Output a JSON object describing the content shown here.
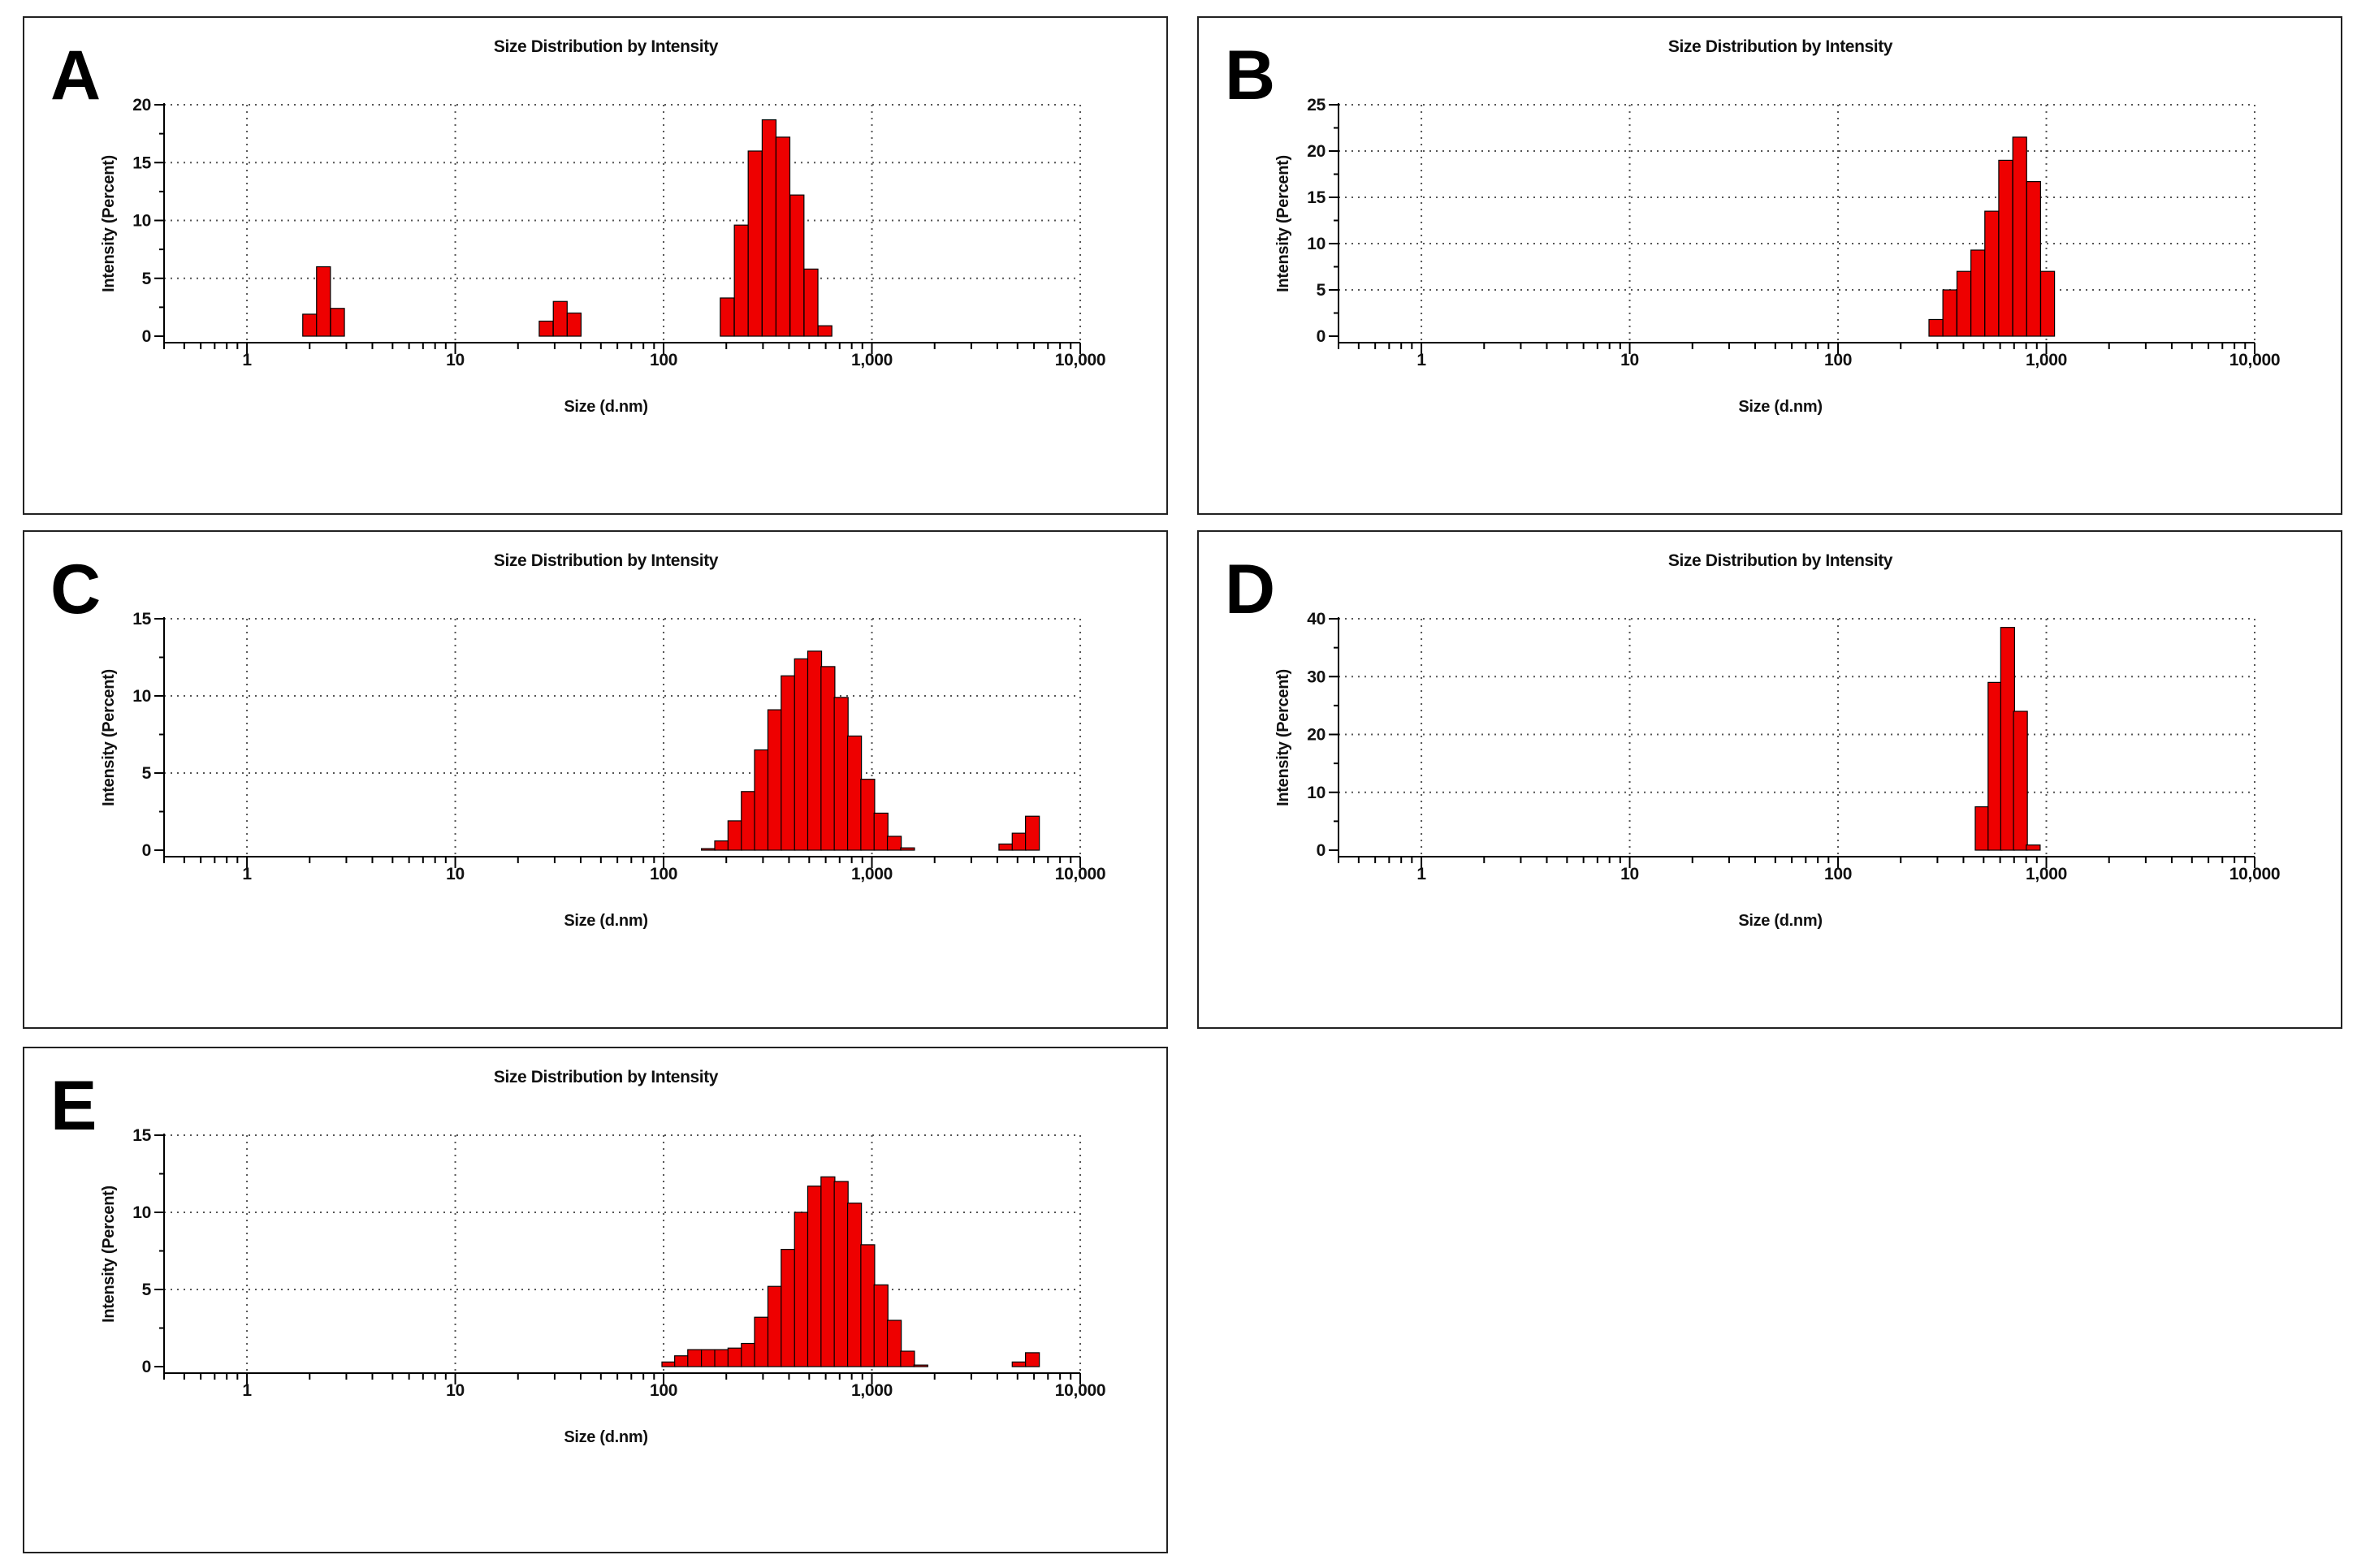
{
  "colors": {
    "bar": "#ee0000",
    "axis": "#000000",
    "grid": "#555555"
  },
  "chart_data": [
    {
      "id": "a",
      "panel_label": "A",
      "type": "bar",
      "title": "Size Distribution by Intensity",
      "xlabel": "Size (d.nm)",
      "ylabel": "Intensity (Percent)",
      "xscale": "log",
      "xlim": [
        0.4,
        10000
      ],
      "ylim": [
        0,
        20
      ],
      "yticks": [
        0,
        5,
        10,
        15,
        20
      ],
      "xticks": [
        1,
        10,
        100,
        1000,
        10000
      ],
      "xtick_labels": [
        "1",
        "10",
        "100",
        "1,000",
        "10,000"
      ],
      "grid": true,
      "bars": [
        {
          "x": 2.0,
          "y": 1.9
        },
        {
          "x": 2.33,
          "y": 6.0
        },
        {
          "x": 2.72,
          "y": 2.4
        },
        {
          "x": 27.3,
          "y": 1.3
        },
        {
          "x": 31.9,
          "y": 3.0
        },
        {
          "x": 37.2,
          "y": 2.0
        },
        {
          "x": 202,
          "y": 3.3
        },
        {
          "x": 236,
          "y": 9.6
        },
        {
          "x": 275,
          "y": 16.0
        },
        {
          "x": 321,
          "y": 18.7
        },
        {
          "x": 374,
          "y": 17.2
        },
        {
          "x": 437,
          "y": 12.2
        },
        {
          "x": 510,
          "y": 5.8
        },
        {
          "x": 595,
          "y": 0.9
        }
      ]
    },
    {
      "id": "b",
      "panel_label": "B",
      "type": "bar",
      "title": "Size Distribution by Intensity",
      "xlabel": "Size (d.nm)",
      "ylabel": "Intensity (Percent)",
      "xscale": "log",
      "xlim": [
        0.4,
        10000
      ],
      "ylim": [
        0,
        25
      ],
      "yticks": [
        0,
        5,
        10,
        15,
        20,
        25
      ],
      "xticks": [
        1,
        10,
        100,
        1000,
        10000
      ],
      "xtick_labels": [
        "1",
        "10",
        "100",
        "1,000",
        "10,000"
      ],
      "grid": true,
      "bars": [
        {
          "x": 295,
          "y": 1.8
        },
        {
          "x": 344,
          "y": 5.0
        },
        {
          "x": 402,
          "y": 7.0
        },
        {
          "x": 469,
          "y": 9.3
        },
        {
          "x": 547,
          "y": 13.5
        },
        {
          "x": 638,
          "y": 19.0
        },
        {
          "x": 745,
          "y": 21.5
        },
        {
          "x": 869,
          "y": 16.7
        },
        {
          "x": 1014,
          "y": 7.0
        }
      ]
    },
    {
      "id": "c",
      "panel_label": "C",
      "type": "bar",
      "title": "Size Distribution by Intensity",
      "xlabel": "Size (d.nm)",
      "ylabel": "Intensity (Percent)",
      "xscale": "log",
      "xlim": [
        0.4,
        10000
      ],
      "ylim": [
        0,
        15
      ],
      "yticks": [
        0,
        5,
        10,
        15
      ],
      "xticks": [
        1,
        10,
        100,
        1000,
        10000
      ],
      "xtick_labels": [
        "1",
        "10",
        "100",
        "1,000",
        "10,000"
      ],
      "grid": true,
      "bars": [
        {
          "x": 164,
          "y": 0.1
        },
        {
          "x": 190,
          "y": 0.6
        },
        {
          "x": 220,
          "y": 1.9
        },
        {
          "x": 255,
          "y": 3.8
        },
        {
          "x": 295,
          "y": 6.5
        },
        {
          "x": 342,
          "y": 9.1
        },
        {
          "x": 396,
          "y": 11.3
        },
        {
          "x": 459,
          "y": 12.4
        },
        {
          "x": 531,
          "y": 12.9
        },
        {
          "x": 615,
          "y": 11.9
        },
        {
          "x": 712,
          "y": 9.9
        },
        {
          "x": 825,
          "y": 7.4
        },
        {
          "x": 955,
          "y": 4.6
        },
        {
          "x": 1106,
          "y": 2.4
        },
        {
          "x": 1281,
          "y": 0.9
        },
        {
          "x": 1483,
          "y": 0.15
        },
        {
          "x": 4396,
          "y": 0.4
        },
        {
          "x": 5091,
          "y": 1.1
        },
        {
          "x": 5895,
          "y": 2.2
        }
      ]
    },
    {
      "id": "d",
      "panel_label": "D",
      "type": "bar",
      "title": "Size Distribution by Intensity",
      "xlabel": "Size (d.nm)",
      "ylabel": "Intensity (Percent)",
      "xscale": "log",
      "xlim": [
        0.4,
        10000
      ],
      "ylim": [
        0,
        40
      ],
      "yticks": [
        0,
        10,
        20,
        30,
        40
      ],
      "xticks": [
        1,
        10,
        100,
        1000,
        10000
      ],
      "xtick_labels": [
        "1",
        "10",
        "100",
        "1,000",
        "10,000"
      ],
      "grid": true,
      "bars": [
        {
          "x": 492,
          "y": 7.5
        },
        {
          "x": 567,
          "y": 29.0
        },
        {
          "x": 652,
          "y": 38.5
        },
        {
          "x": 751,
          "y": 24.0
        },
        {
          "x": 865,
          "y": 0.9
        }
      ]
    },
    {
      "id": "e",
      "panel_label": "E",
      "type": "bar",
      "title": "Size Distribution by Intensity",
      "xlabel": "Size (d.nm)",
      "ylabel": "Intensity (Percent)",
      "xscale": "log",
      "xlim": [
        0.4,
        10000
      ],
      "ylim": [
        0,
        15
      ],
      "yticks": [
        0,
        5,
        10,
        15
      ],
      "xticks": [
        1,
        10,
        100,
        1000,
        10000
      ],
      "xtick_labels": [
        "1",
        "10",
        "100",
        "1,000",
        "10,000"
      ],
      "grid": true,
      "bars": [
        {
          "x": 106,
          "y": 0.3
        },
        {
          "x": 122,
          "y": 0.7
        },
        {
          "x": 141,
          "y": 1.1
        },
        {
          "x": 164,
          "y": 1.1
        },
        {
          "x": 190,
          "y": 1.1
        },
        {
          "x": 220,
          "y": 1.2
        },
        {
          "x": 255,
          "y": 1.5
        },
        {
          "x": 295,
          "y": 3.2
        },
        {
          "x": 342,
          "y": 5.2
        },
        {
          "x": 396,
          "y": 7.6
        },
        {
          "x": 459,
          "y": 10.0
        },
        {
          "x": 531,
          "y": 11.7
        },
        {
          "x": 615,
          "y": 12.3
        },
        {
          "x": 712,
          "y": 12.0
        },
        {
          "x": 825,
          "y": 10.6
        },
        {
          "x": 955,
          "y": 7.9
        },
        {
          "x": 1106,
          "y": 5.3
        },
        {
          "x": 1281,
          "y": 3.0
        },
        {
          "x": 1483,
          "y": 1.0
        },
        {
          "x": 1718,
          "y": 0.1
        },
        {
          "x": 5091,
          "y": 0.3
        },
        {
          "x": 5895,
          "y": 0.9
        }
      ]
    }
  ]
}
